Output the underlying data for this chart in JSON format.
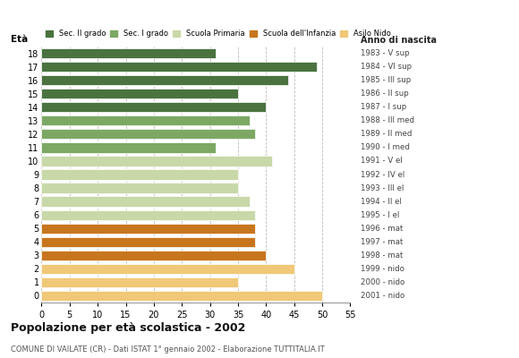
{
  "ages": [
    18,
    17,
    16,
    15,
    14,
    13,
    12,
    11,
    10,
    9,
    8,
    7,
    6,
    5,
    4,
    3,
    2,
    1,
    0
  ],
  "values": [
    31,
    49,
    44,
    35,
    40,
    37,
    38,
    31,
    41,
    35,
    35,
    37,
    38,
    38,
    38,
    40,
    45,
    35,
    50
  ],
  "colors": [
    "#4a7340",
    "#4a7340",
    "#4a7340",
    "#4a7340",
    "#4a7340",
    "#7da864",
    "#7da864",
    "#7da864",
    "#c8d8a8",
    "#c8d8a8",
    "#c8d8a8",
    "#c8d8a8",
    "#c8d8a8",
    "#c8761e",
    "#c8761e",
    "#c8761e",
    "#f0c878",
    "#f0c878",
    "#f0c878"
  ],
  "right_labels": [
    "1983 - V sup",
    "1984 - VI sup",
    "1985 - III sup",
    "1986 - II sup",
    "1987 - I sup",
    "1988 - III med",
    "1989 - II med",
    "1990 - I med",
    "1991 - V el",
    "1992 - IV el",
    "1993 - III el",
    "1994 - II el",
    "1995 - I el",
    "1996 - mat",
    "1997 - mat",
    "1998 - mat",
    "1999 - nido",
    "2000 - nido",
    "2001 - nido"
  ],
  "legend_labels": [
    "Sec. II grado",
    "Sec. I grado",
    "Scuola Primaria",
    "Scuola dell'Infanzia",
    "Asilo Nido"
  ],
  "legend_colors": [
    "#4a7340",
    "#7da864",
    "#c8d8a8",
    "#c8761e",
    "#f0c878"
  ],
  "label_eta": "Età",
  "label_anno": "Anno di nascita",
  "title": "Popolazione per età scolastica - 2002",
  "subtitle": "COMUNE DI VAILATE (CR) - Dati ISTAT 1° gennaio 2002 - Elaborazione TUTTITALIA.IT",
  "xlim": [
    0,
    55
  ],
  "xticks": [
    0,
    5,
    10,
    15,
    20,
    25,
    30,
    35,
    40,
    45,
    50,
    55
  ],
  "background_color": "#ffffff",
  "grid_color": "#bbbbbb"
}
